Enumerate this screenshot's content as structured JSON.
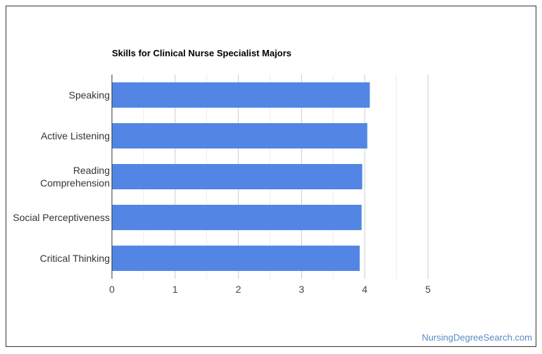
{
  "chart_data": {
    "type": "hbar",
    "title": "Skills for Clinical Nurse Specialist Majors",
    "categories": [
      "Speaking",
      "Active Listening",
      "Reading Comprehension",
      "Social Perceptiveness",
      "Critical Thinking"
    ],
    "values": [
      4.08,
      4.04,
      3.96,
      3.95,
      3.92
    ],
    "color": "#5386e4",
    "xlim": [
      0,
      5
    ],
    "xticks": [
      0,
      1,
      2,
      3,
      4,
      5
    ],
    "xminorticks": [
      0.5,
      1.5,
      2.5,
      3.5,
      4.5
    ],
    "grid": true
  },
  "footer": {
    "source": "NursingDegreeSearch.com"
  }
}
